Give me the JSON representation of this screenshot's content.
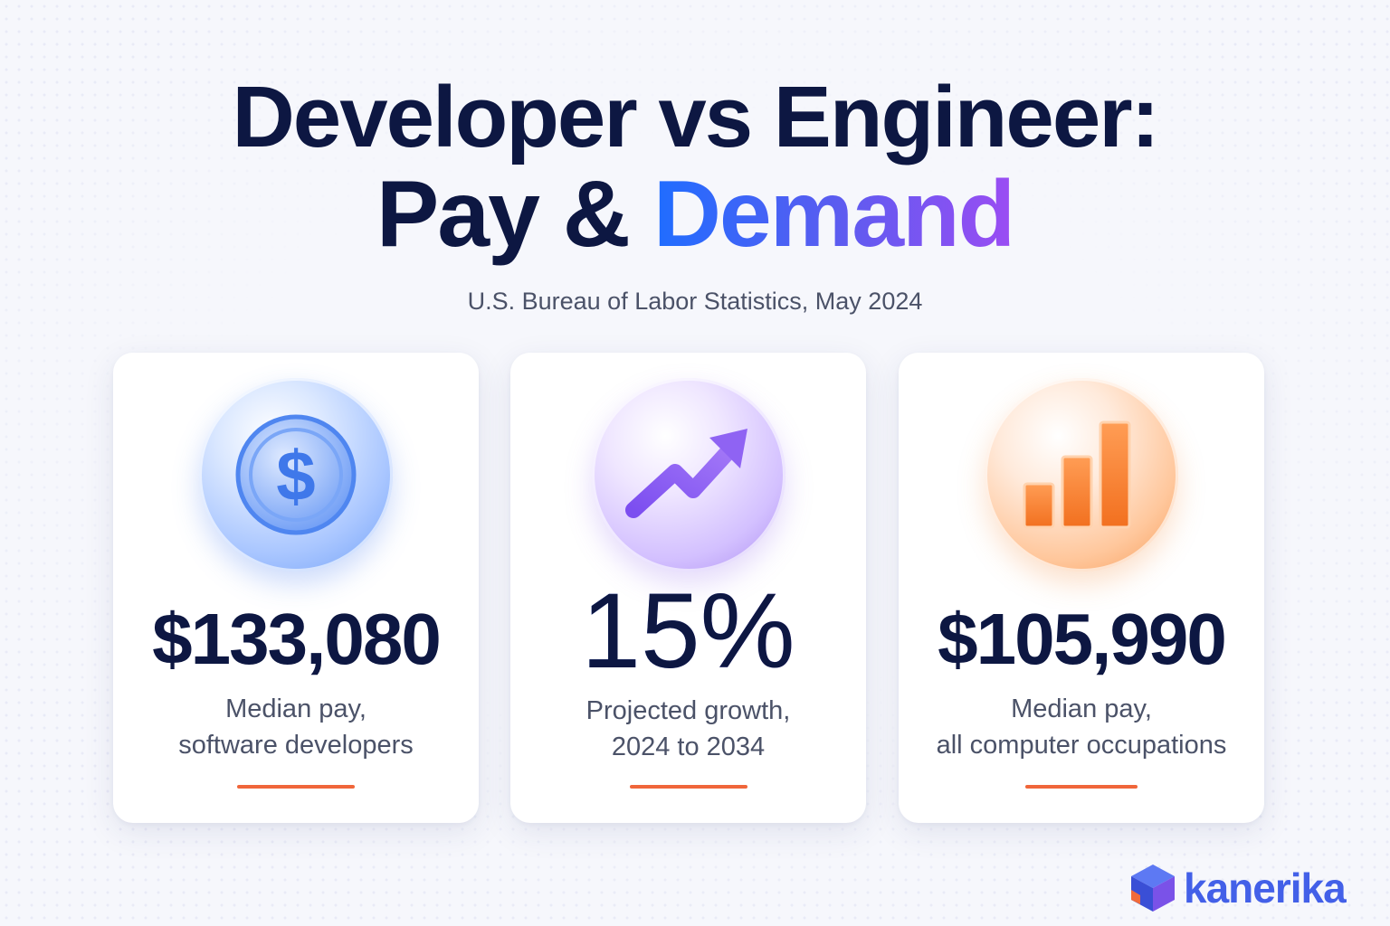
{
  "header": {
    "title_line1": "Developer vs Engineer:",
    "title_line2_plain": "Pay & ",
    "title_line2_highlight": "Demand",
    "subtitle": "U.S. Bureau of Labor Statistics, May 2024"
  },
  "cards": [
    {
      "icon": "dollar-coin-icon",
      "accent": "#5b8ff5",
      "value": "$133,080",
      "caption_line1": "Median pay,",
      "caption_line2": "software developers"
    },
    {
      "icon": "trending-up-arrow-icon",
      "accent": "#8a5cf0",
      "value": "15%",
      "caption_line1": "Projected growth,",
      "caption_line2": "2024 to 2034"
    },
    {
      "icon": "bar-chart-icon",
      "accent": "#f58a3a",
      "value": "$105,990",
      "caption_line1": "Median pay,",
      "caption_line2": "all computer occupations"
    }
  ],
  "brand": {
    "name": "kanerika",
    "icon": "kanerika-cube-logo-icon",
    "color": "#4360e8"
  },
  "colors": {
    "title": "#0d1742",
    "highlight_gradient": [
      "#1f6dff",
      "#9b4df3"
    ],
    "divider": "#f0663a"
  }
}
